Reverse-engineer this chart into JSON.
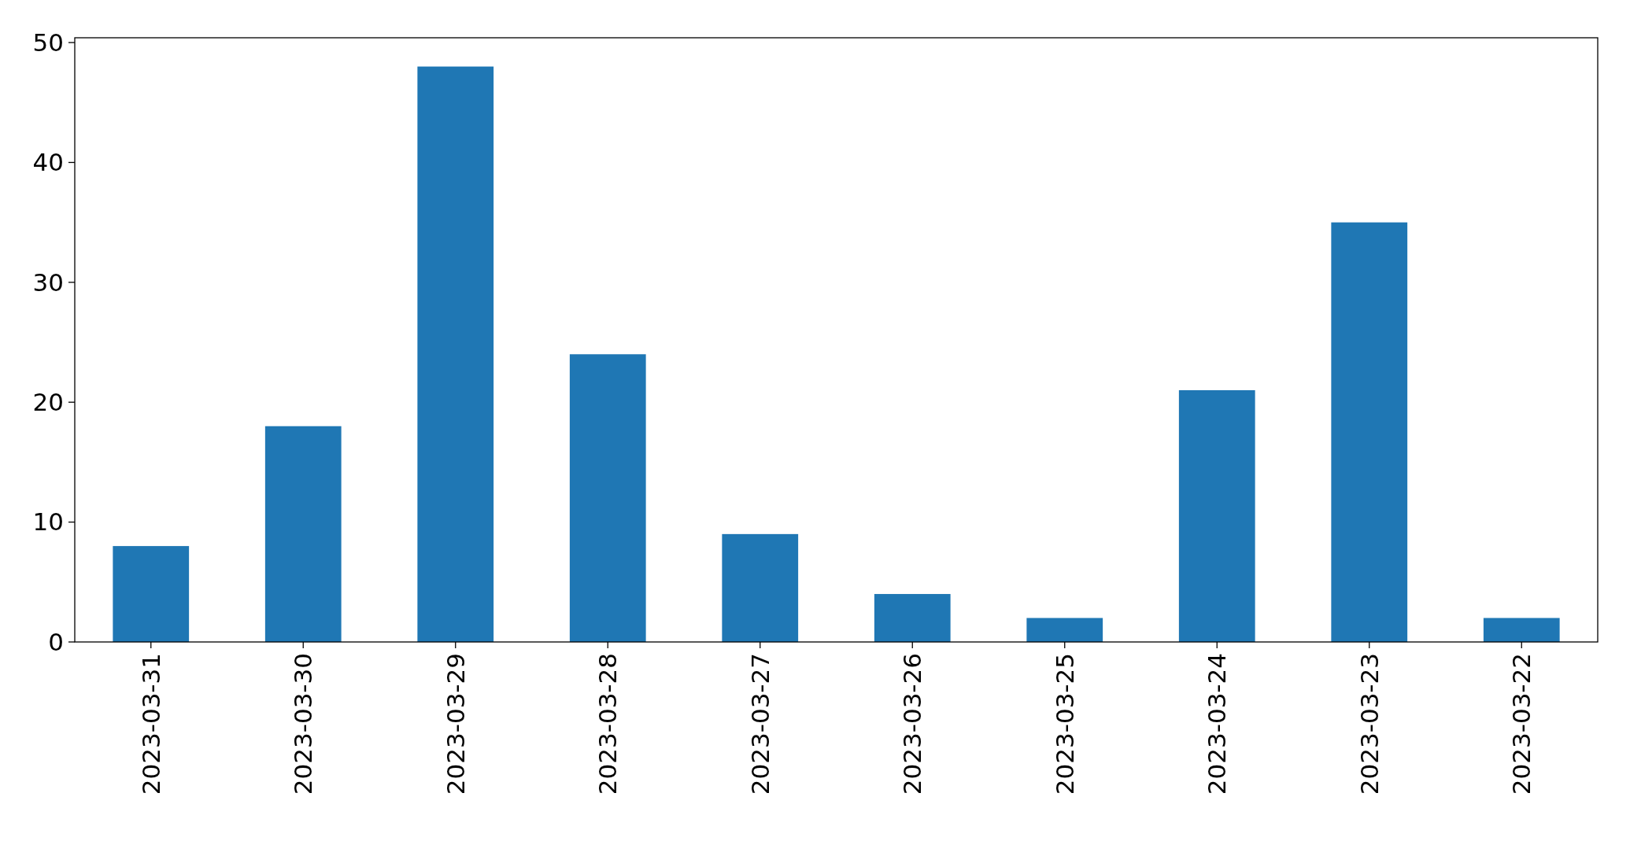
{
  "chart_data": {
    "type": "bar",
    "categories": [
      "2023-03-31",
      "2023-03-30",
      "2023-03-29",
      "2023-03-28",
      "2023-03-27",
      "2023-03-26",
      "2023-03-25",
      "2023-03-24",
      "2023-03-23",
      "2023-03-22"
    ],
    "values": [
      8,
      18,
      48,
      24,
      9,
      4,
      2,
      21,
      35,
      2
    ],
    "color": "#1f77b4",
    "ylim": [
      0,
      50.4
    ],
    "yticks": [
      0,
      10,
      20,
      30,
      40,
      50
    ],
    "grid": false
  }
}
